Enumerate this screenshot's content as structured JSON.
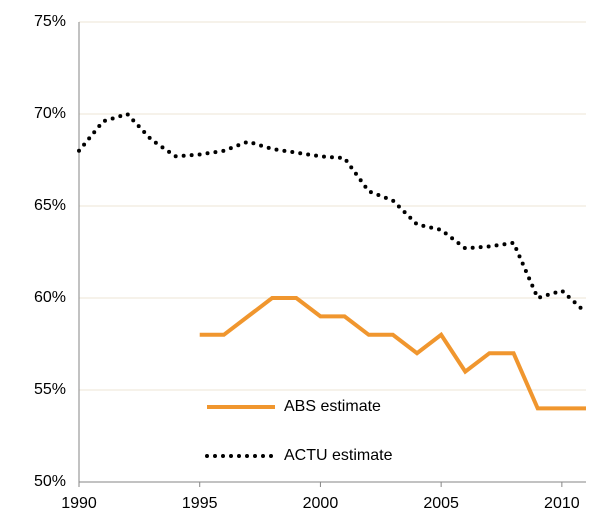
{
  "chart_data": {
    "type": "line",
    "x": [
      1990,
      1991,
      1992,
      1993,
      1994,
      1995,
      1996,
      1997,
      1998,
      1999,
      2000,
      2001,
      2002,
      2003,
      2004,
      2005,
      2006,
      2007,
      2008,
      2009,
      2010,
      2011
    ],
    "series": [
      {
        "name": "ABS estimate",
        "color": "#f0962e",
        "style": "solid",
        "values": [
          null,
          null,
          null,
          null,
          null,
          58,
          58,
          59,
          60,
          60,
          59,
          59,
          58,
          58,
          57,
          58,
          56,
          57,
          57,
          54,
          54,
          54
        ]
      },
      {
        "name": "ACTU estimate",
        "color": "#000000",
        "style": "dotted",
        "values": [
          68.0,
          69.6,
          70.0,
          68.6,
          67.7,
          67.8,
          68.0,
          68.5,
          68.1,
          67.9,
          67.7,
          67.6,
          65.8,
          65.3,
          64.0,
          63.7,
          62.7,
          62.8,
          63.0,
          60.0,
          60.4,
          59.2
        ]
      }
    ],
    "xlim": [
      1990,
      2011
    ],
    "xticks": [
      1990,
      1995,
      2000,
      2005,
      2010
    ],
    "ylim": [
      50,
      75
    ],
    "yticks": [
      {
        "value": 50,
        "label": "50%"
      },
      {
        "value": 55,
        "label": "55%"
      },
      {
        "value": 60,
        "label": "60%"
      },
      {
        "value": 65,
        "label": "65%"
      },
      {
        "value": 70,
        "label": "70%"
      },
      {
        "value": 75,
        "label": "75%"
      }
    ],
    "grid": true,
    "legend": "lower right"
  }
}
